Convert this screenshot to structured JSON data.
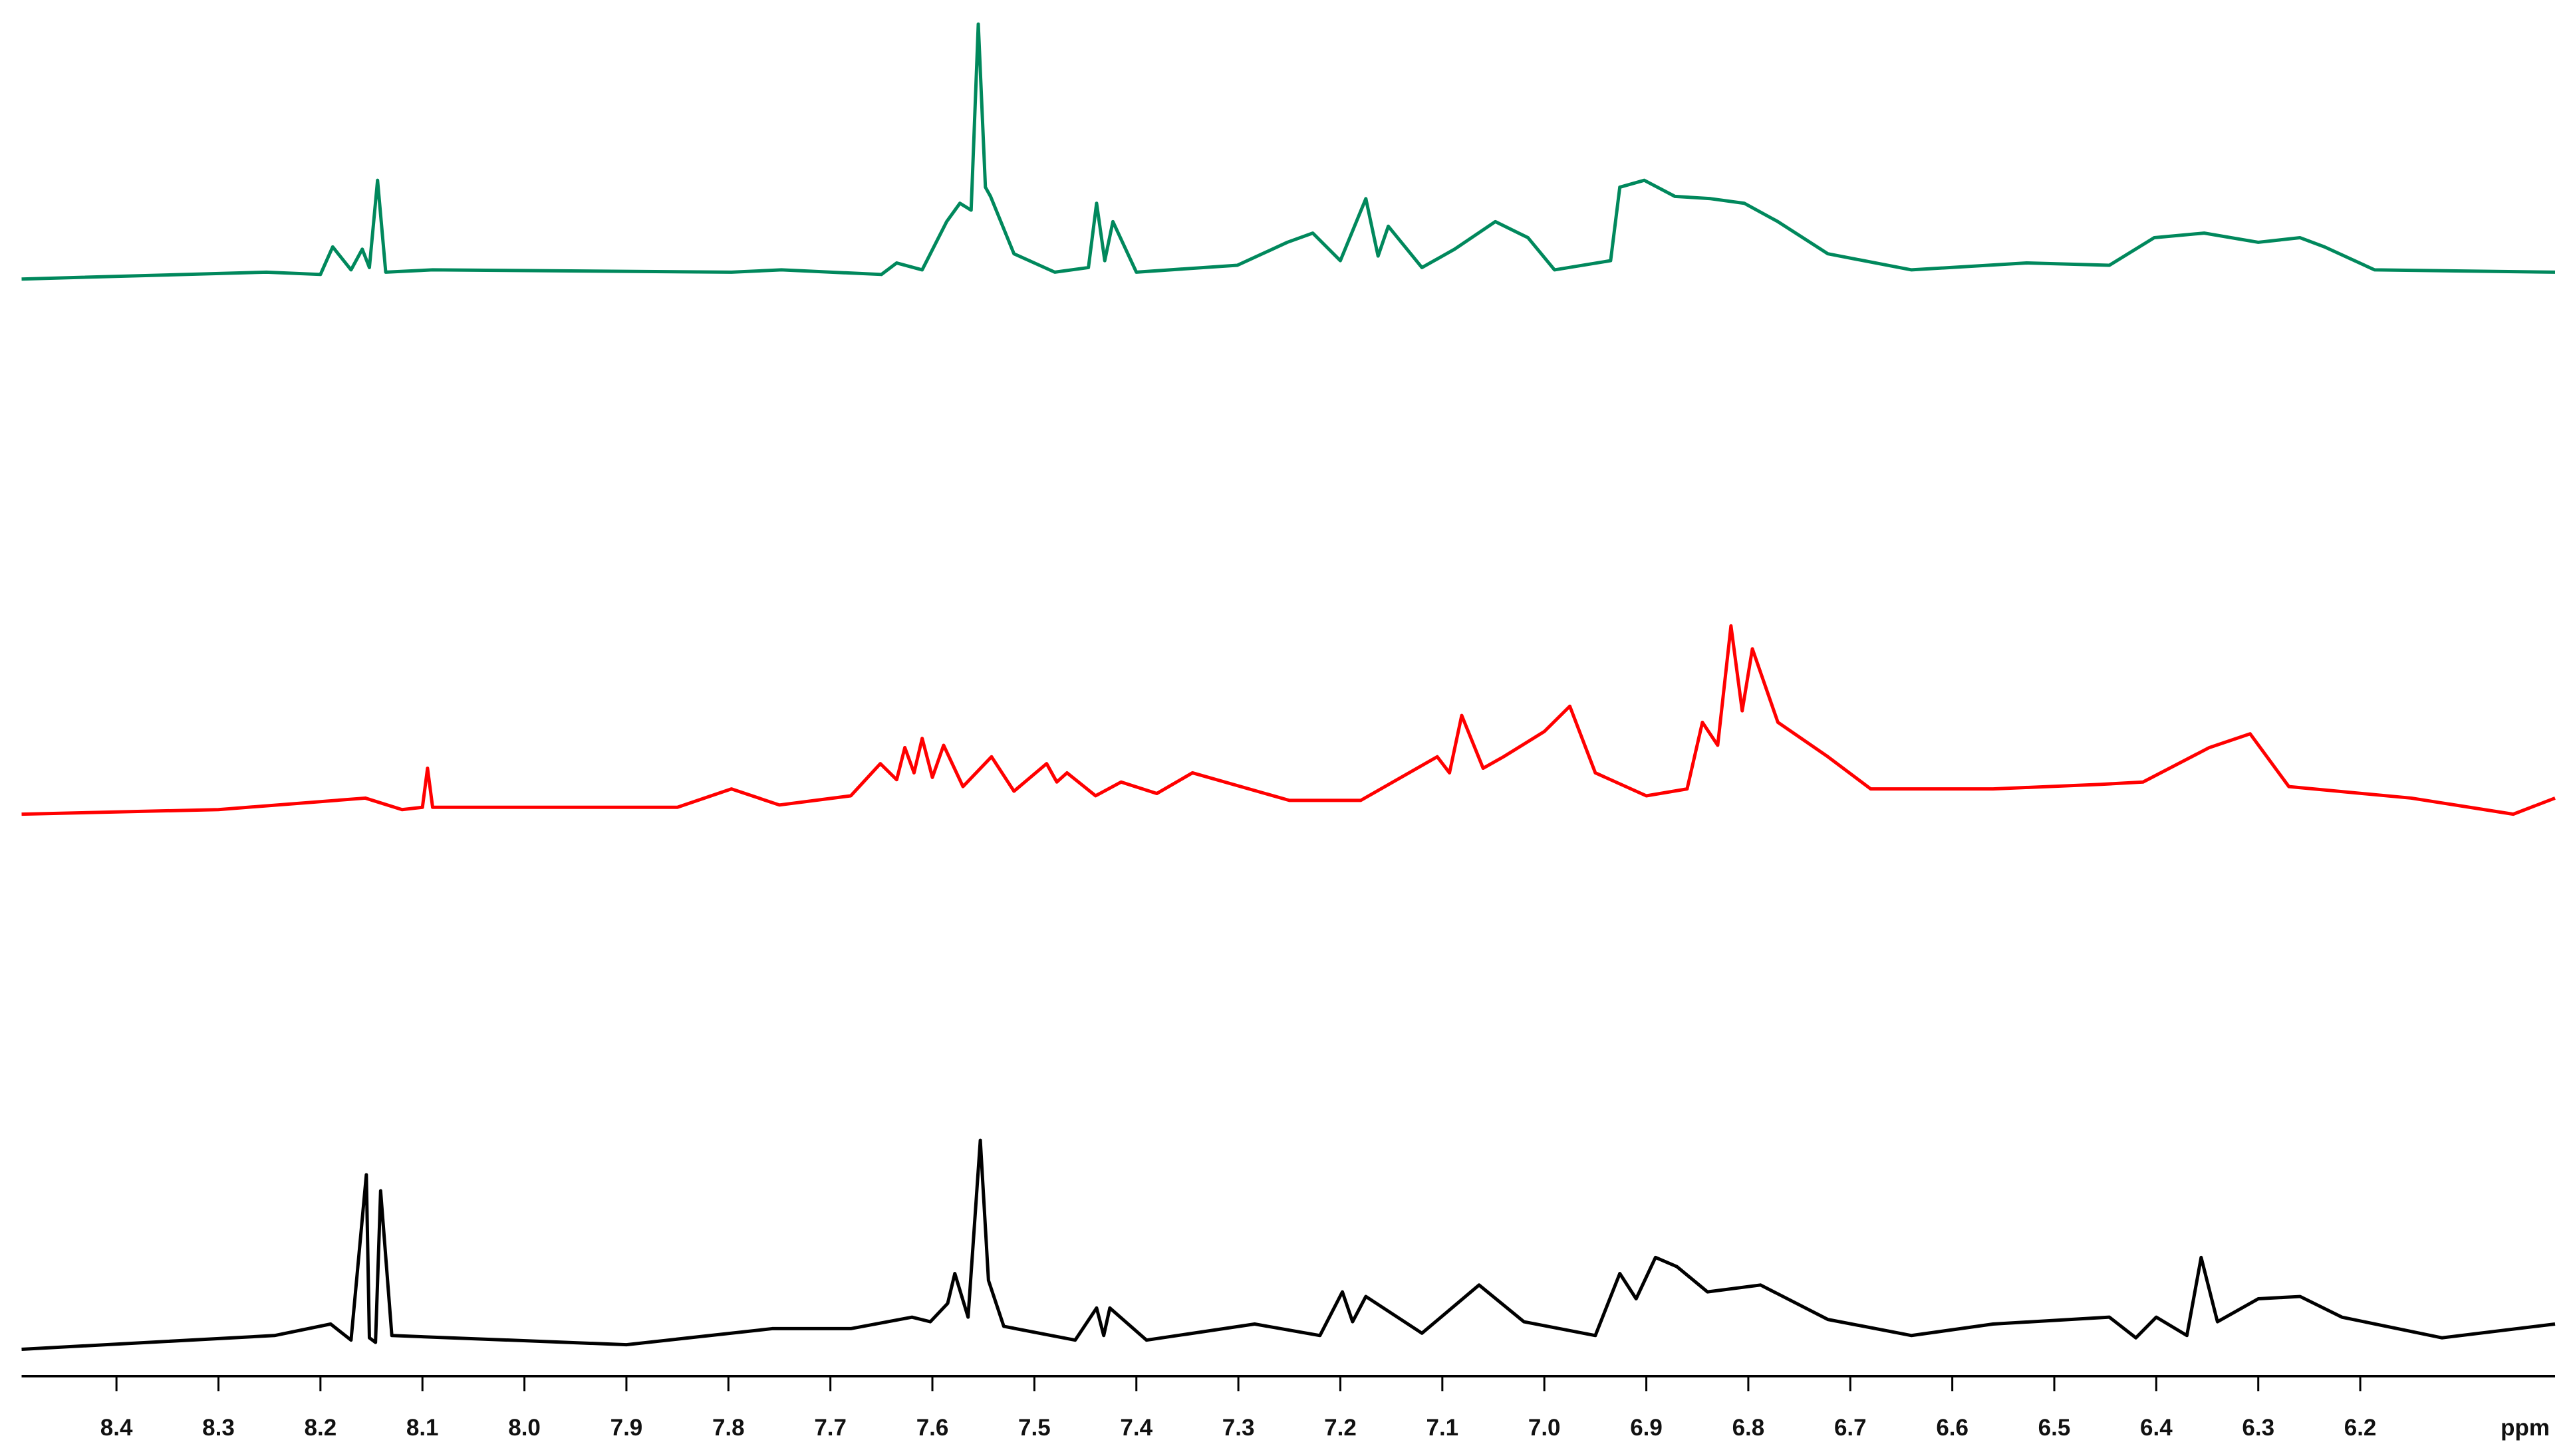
{
  "chart_data": {
    "type": "line",
    "xlabel": "ppm",
    "xlim": [
      8.493,
      6.009
    ],
    "xticks": [
      8.4,
      8.3,
      8.2,
      8.1,
      {
        "value": 8,
        "label": "8.0"
      },
      7.9,
      7.8,
      7.7,
      7.6,
      7.5,
      7.4,
      7.3,
      7.2,
      7.1,
      {
        "value": 7,
        "label": "7.0"
      },
      6.9,
      6.8,
      6.7,
      6.6,
      6.5,
      6.4,
      6.3,
      6.2
    ],
    "ylim": [
      -3,
      230
    ],
    "series": [
      {
        "color": "#00885c",
        "x": [
          8.493,
          8.253,
          8.2,
          8.188,
          8.17,
          8.159,
          8.152,
          8.144,
          8.136,
          8.09,
          7.797,
          7.748,
          7.65,
          7.635,
          7.61,
          7.586,
          7.573,
          7.562,
          7.555,
          7.548,
          7.543,
          7.52,
          7.48,
          7.447,
          7.439,
          7.431,
          7.423,
          7.4,
          7.301,
          7.252,
          7.227,
          7.2,
          7.175,
          7.163,
          7.153,
          7.12,
          7.088,
          7.048,
          7.016,
          6.99,
          6.935,
          6.926,
          6.902,
          6.872,
          6.837,
          6.804,
          6.771,
          6.722,
          6.64,
          6.527,
          6.446,
          6.402,
          6.353,
          6.3,
          6.259,
          6.235,
          6.186,
          6.009
        ],
        "values": [
          0,
          3,
          2,
          14,
          4,
          13,
          5,
          43,
          3,
          4,
          3,
          4,
          2,
          7,
          4,
          25,
          33,
          30,
          111,
          40,
          36,
          11,
          3,
          5,
          33,
          8,
          25,
          3,
          6,
          16,
          20,
          8,
          35,
          10,
          23,
          5,
          13,
          25,
          18,
          4,
          8,
          40,
          43,
          36,
          35,
          33,
          25,
          11,
          4,
          7,
          6,
          18,
          20,
          16,
          18,
          14,
          4,
          3
        ]
      },
      {
        "color": "#ff0000",
        "x": [
          8.493,
          8.3,
          8.156,
          8.12,
          8.1,
          8.095,
          8.09,
          7.85,
          7.797,
          7.75,
          7.68,
          7.651,
          7.635,
          7.627,
          7.618,
          7.61,
          7.6,
          7.589,
          7.57,
          7.542,
          7.52,
          7.488,
          7.478,
          7.468,
          7.44,
          7.415,
          7.38,
          7.345,
          7.25,
          7.18,
          7.105,
          7.093,
          7.081,
          7.06,
          7.04,
          7.0,
          6.975,
          6.95,
          6.9,
          6.86,
          6.845,
          6.83,
          6.817,
          6.806,
          6.796,
          6.771,
          6.722,
          6.68,
          6.56,
          6.454,
          6.413,
          6.348,
          6.308,
          6.27,
          6.15,
          6.05,
          6.009
        ],
        "values": [
          0,
          2,
          7,
          2,
          3,
          20,
          3,
          3,
          11,
          4,
          8,
          22,
          15,
          29,
          18,
          33,
          16,
          30,
          12,
          25,
          10,
          22,
          14,
          18,
          8,
          14,
          9,
          18,
          6,
          6,
          25,
          18,
          43,
          20,
          25,
          36,
          47,
          18,
          8,
          11,
          40,
          30,
          82,
          45,
          72,
          40,
          25,
          11,
          11,
          13,
          14,
          29,
          35,
          12,
          7,
          0,
          7
        ]
      },
      {
        "color": "#000000",
        "x": [
          8.493,
          8.245,
          8.19,
          8.17,
          8.155,
          8.152,
          8.146,
          8.141,
          8.13,
          7.9,
          7.757,
          7.68,
          7.62,
          7.602,
          7.585,
          7.578,
          7.565,
          7.553,
          7.545,
          7.53,
          7.46,
          7.439,
          7.432,
          7.426,
          7.39,
          7.284,
          7.22,
          7.198,
          7.188,
          7.175,
          7.12,
          7.064,
          7.02,
          6.95,
          6.926,
          6.91,
          6.891,
          6.87,
          6.84,
          6.788,
          6.722,
          6.64,
          6.56,
          6.446,
          6.42,
          6.4,
          6.37,
          6.356,
          6.34,
          6.3,
          6.259,
          6.218,
          6.12,
          6.009
        ],
        "values": [
          0,
          6,
          11,
          4,
          76,
          5,
          3,
          69,
          6,
          2,
          9,
          9,
          14,
          12,
          20,
          33,
          14,
          91,
          30,
          10,
          4,
          18,
          6,
          18,
          4,
          11,
          6,
          25,
          12,
          23,
          7,
          28,
          12,
          6,
          33,
          22,
          40,
          36,
          25,
          28,
          13,
          6,
          11,
          14,
          5,
          14,
          6,
          40,
          12,
          22,
          23,
          14,
          5,
          11
        ]
      }
    ]
  }
}
